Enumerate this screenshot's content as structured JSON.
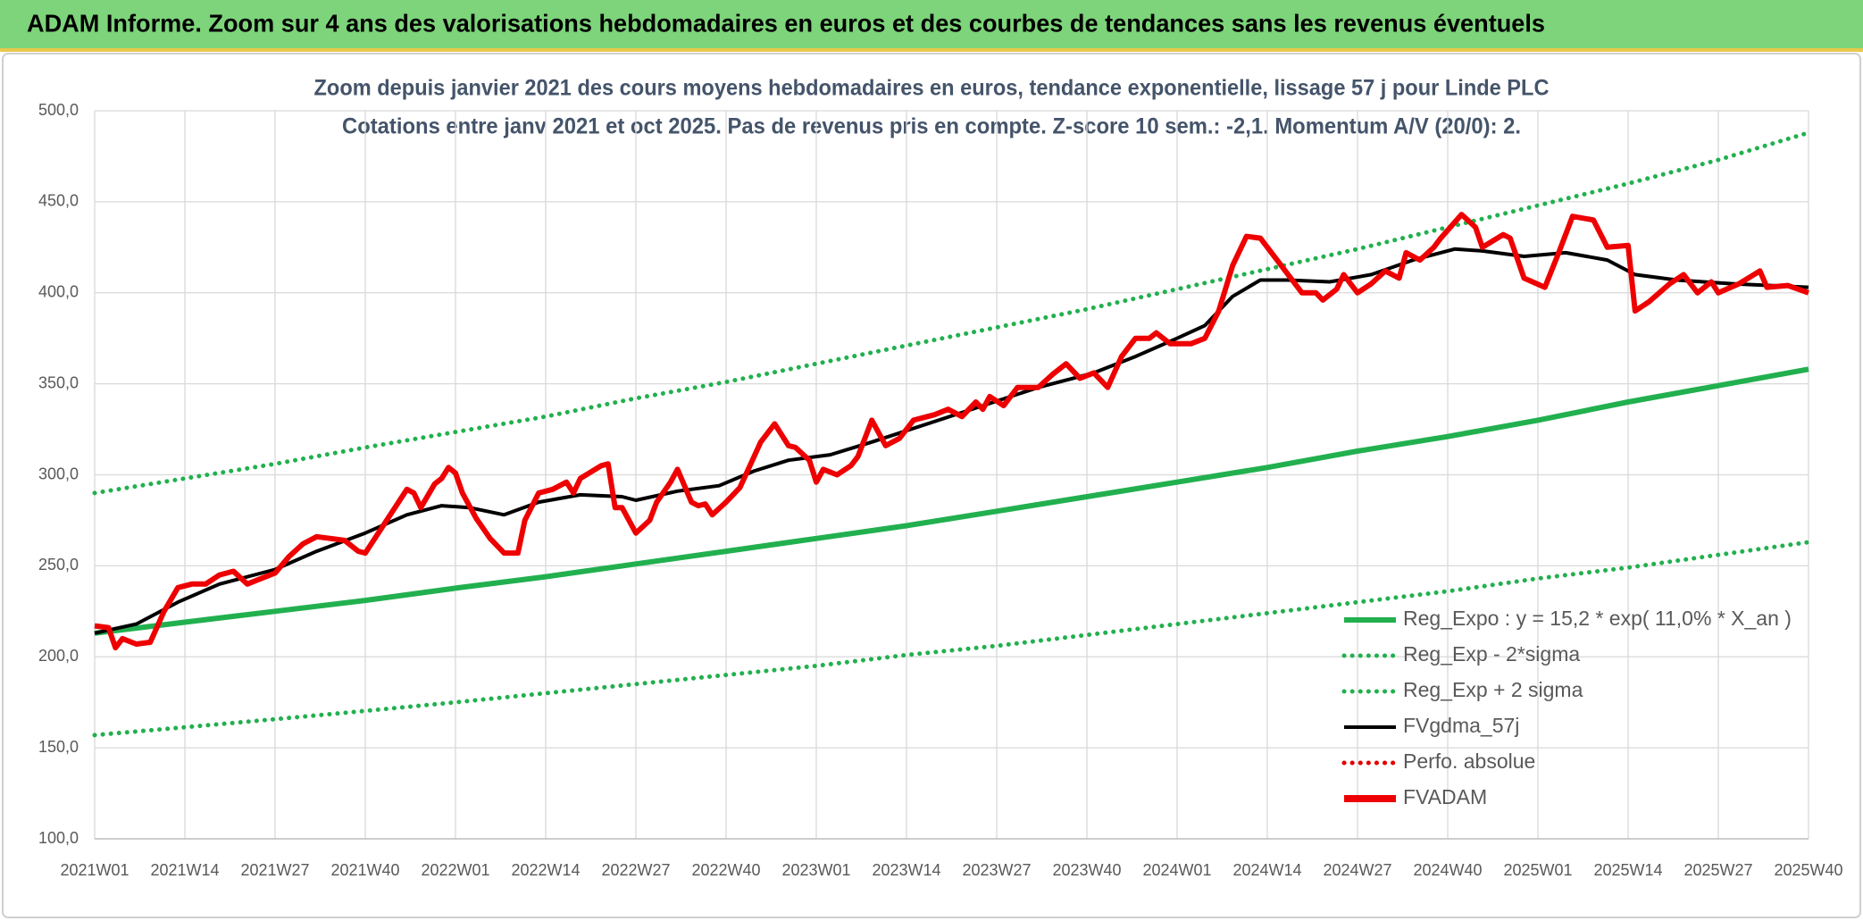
{
  "header": {
    "title": "ADAM Informe. Zoom sur 4 ans des valorisations hebdomadaires en euros et des courbes de tendances sans les revenus éventuels"
  },
  "chart_data": {
    "type": "line",
    "title": "Zoom depuis janvier 2021 des cours moyens hebdomadaires en euros, tendance exponentielle, lissage 57 j pour Linde PLC",
    "subtitle": "Cotations entre janv 2021 et oct 2025. Pas de revenus pris en compte. Z-score 10 sem.: -2,1. Momentum A/V (20/0): 2.",
    "xlim": [
      0,
      247
    ],
    "xticks": [
      {
        "value": 0,
        "label": "2021W01"
      },
      {
        "value": 13,
        "label": "2021W14"
      },
      {
        "value": 26,
        "label": "2021W27"
      },
      {
        "value": 39,
        "label": "2021W40"
      },
      {
        "value": 52,
        "label": "2022W01"
      },
      {
        "value": 65,
        "label": "2022W14"
      },
      {
        "value": 78,
        "label": "2022W27"
      },
      {
        "value": 91,
        "label": "2022W40"
      },
      {
        "value": 104,
        "label": "2023W01"
      },
      {
        "value": 117,
        "label": "2023W14"
      },
      {
        "value": 130,
        "label": "2023W27"
      },
      {
        "value": 143,
        "label": "2023W40"
      },
      {
        "value": 156,
        "label": "2024W01"
      },
      {
        "value": 169,
        "label": "2024W14"
      },
      {
        "value": 182,
        "label": "2024W27"
      },
      {
        "value": 195,
        "label": "2024W40"
      },
      {
        "value": 208,
        "label": "2025W01"
      },
      {
        "value": 221,
        "label": "2025W14"
      },
      {
        "value": 234,
        "label": "2025W27"
      },
      {
        "value": 247,
        "label": "2025W40"
      }
    ],
    "ylim": [
      100,
      500
    ],
    "yticks": [
      {
        "value": 100,
        "label": "100,0"
      },
      {
        "value": 150,
        "label": "150,0"
      },
      {
        "value": 200,
        "label": "200,0"
      },
      {
        "value": 250,
        "label": "250,0"
      },
      {
        "value": 300,
        "label": "300,0"
      },
      {
        "value": 350,
        "label": "350,0"
      },
      {
        "value": 400,
        "label": "400,0"
      },
      {
        "value": 450,
        "label": "450,0"
      },
      {
        "value": 500,
        "label": "500,0"
      }
    ],
    "grid": true,
    "series": [
      {
        "name": "Reg_Expo : y = 15,2 * exp( 11,0% *  X_an )",
        "color": "#22b04f",
        "dash": "solid",
        "x": [
          0,
          13,
          26,
          39,
          52,
          65,
          78,
          91,
          104,
          117,
          130,
          143,
          156,
          169,
          182,
          195,
          208,
          221,
          234,
          247
        ],
        "values": [
          213,
          219,
          225,
          231,
          237.7,
          244,
          251,
          258,
          265,
          272,
          280,
          288,
          296,
          304,
          313,
          321,
          330,
          340,
          349,
          358
        ]
      },
      {
        "name": "Reg_Exp - 2*sigma",
        "color": "#22b04f",
        "dash": "dotted",
        "x": [
          0,
          13,
          26,
          39,
          52,
          65,
          78,
          91,
          104,
          117,
          130,
          143,
          156,
          169,
          182,
          195,
          208,
          221,
          234,
          247
        ],
        "values": [
          157,
          161.3,
          165.7,
          170.3,
          175,
          180,
          185,
          190,
          195,
          201,
          206,
          212,
          218,
          224,
          230,
          236,
          243,
          249,
          256,
          263
        ]
      },
      {
        "name": "Reg_Exp + 2 sigma",
        "color": "#22b04f",
        "dash": "dotted",
        "x": [
          0,
          13,
          26,
          39,
          52,
          65,
          78,
          91,
          104,
          117,
          130,
          143,
          156,
          169,
          182,
          195,
          208,
          221,
          234,
          247
        ],
        "values": [
          290,
          298,
          306,
          315,
          323.5,
          332,
          342,
          351,
          361,
          371,
          381,
          391,
          402,
          413,
          424,
          436,
          448,
          460,
          473,
          488
        ]
      },
      {
        "name": "FVgdma_57j",
        "color": "#000000",
        "dash": "solid",
        "x": [
          0,
          6,
          12,
          18,
          26,
          32,
          39,
          45,
          50,
          54,
          59,
          64,
          70,
          76,
          78,
          84,
          90,
          95,
          100,
          106,
          112,
          120,
          128,
          136,
          144,
          150,
          156,
          160,
          164,
          168,
          172,
          178,
          184,
          190,
          196,
          200,
          206,
          212,
          218,
          222,
          228,
          236,
          247
        ],
        "values": [
          213,
          218,
          230,
          240,
          248,
          258,
          268,
          278,
          283,
          282,
          278,
          285,
          289,
          288,
          286,
          291,
          294,
          302,
          308,
          311,
          318,
          328,
          338,
          348,
          356,
          365,
          375,
          382,
          398,
          407,
          407,
          406,
          410,
          418,
          424,
          423,
          420,
          422,
          418,
          410,
          407,
          405,
          403
        ]
      },
      {
        "name": "Perfo. absolue",
        "color": "#e00000",
        "dash": "dotted",
        "x": [],
        "values": []
      },
      {
        "name": "FVADAM",
        "color": "#ee0000",
        "dash": "solid",
        "x": [
          0,
          2,
          3,
          4,
          6,
          8,
          10,
          12,
          14,
          16,
          18,
          20,
          22,
          24,
          26,
          28,
          30,
          32,
          34,
          36,
          38,
          39,
          45,
          46,
          47,
          49,
          50,
          51,
          52,
          53,
          55,
          57,
          59,
          61,
          62,
          64,
          66,
          68,
          69,
          70,
          73,
          74,
          75,
          76,
          78,
          80,
          81,
          83,
          84,
          86,
          87,
          88,
          89,
          91,
          93,
          96,
          98,
          100,
          101,
          103,
          104,
          105,
          107,
          109,
          110,
          112,
          114,
          116,
          117,
          118,
          121,
          123,
          125,
          127,
          128,
          129,
          131,
          133,
          136,
          138,
          140,
          142,
          144,
          146,
          148,
          150,
          152,
          153,
          155,
          158,
          160,
          162,
          164,
          166,
          168,
          170,
          172,
          174,
          176,
          177,
          179,
          180,
          182,
          184,
          186,
          188,
          189,
          191,
          193,
          194,
          197,
          199,
          200,
          203,
          204,
          206,
          209,
          211,
          213,
          216,
          218,
          221,
          222,
          224,
          227,
          229,
          231,
          233,
          234,
          237,
          240,
          241,
          244,
          247
        ],
        "values": [
          217,
          216,
          205,
          210,
          207,
          208,
          225,
          238,
          240,
          240,
          245,
          247,
          240,
          243,
          246,
          255,
          262,
          266,
          265,
          264,
          258,
          257,
          292,
          290,
          282,
          295,
          298,
          304,
          301,
          290,
          276,
          265,
          257,
          257,
          275,
          290,
          292,
          296,
          290,
          298,
          305,
          306,
          282,
          282,
          268,
          275,
          285,
          296,
          303,
          285,
          283,
          284,
          278,
          285,
          293,
          318,
          328,
          316,
          315,
          308,
          296,
          303,
          300,
          305,
          310,
          330,
          316,
          320,
          325,
          330,
          333,
          336,
          332,
          340,
          336,
          343,
          338,
          348,
          348,
          355,
          361,
          353,
          356,
          348,
          365,
          375,
          375,
          378,
          372,
          372,
          375,
          390,
          415,
          431,
          430,
          420,
          410,
          400,
          400,
          396,
          402,
          410,
          400,
          405,
          412,
          408,
          422,
          418,
          425,
          430,
          443,
          436,
          425,
          432,
          430,
          408,
          403,
          422,
          442,
          440,
          425,
          426,
          390,
          395,
          405,
          410,
          400,
          406,
          400,
          405,
          412,
          403,
          404,
          400
        ]
      }
    ]
  }
}
